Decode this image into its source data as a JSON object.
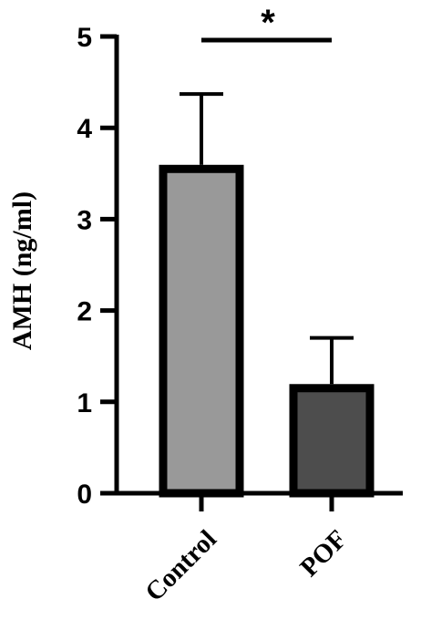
{
  "chart_data": {
    "type": "bar",
    "categories": [
      "Control",
      "POF"
    ],
    "values": [
      3.55,
      1.15
    ],
    "error_upper": [
      4.37,
      1.7
    ],
    "ylabel": "AMH (ng/ml)",
    "ylim": [
      0,
      5
    ],
    "yticks": [
      "0",
      "1",
      "2",
      "3",
      "4",
      "5"
    ],
    "significance": {
      "between": [
        "Control",
        "POF"
      ],
      "label": "*"
    },
    "grid": false,
    "colors": {
      "Control": "#999999",
      "POF": "#4d4d4d",
      "outline": "#000000"
    }
  }
}
